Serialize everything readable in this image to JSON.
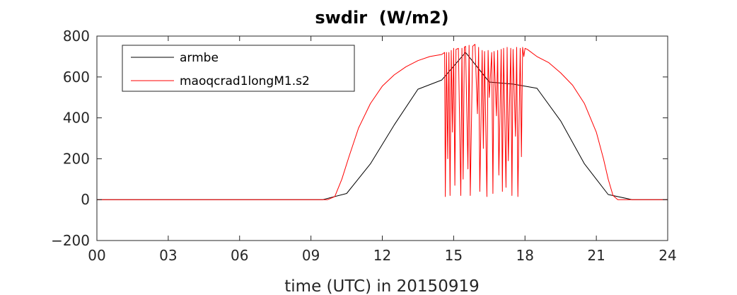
{
  "chart_data": {
    "type": "line",
    "title": "swdir  (W/m2)",
    "xlabel": "time (UTC) in 20150919",
    "ylabel": "",
    "xlim": [
      0,
      24
    ],
    "ylim": [
      -200,
      800
    ],
    "x_ticks": [
      0,
      3,
      6,
      9,
      12,
      15,
      18,
      21,
      24
    ],
    "x_tick_labels": [
      "00",
      "03",
      "06",
      "09",
      "12",
      "15",
      "18",
      "21",
      "24"
    ],
    "y_ticks": [
      -200,
      0,
      200,
      400,
      600,
      800
    ],
    "y_tick_labels": [
      "−200",
      "0",
      "200",
      "400",
      "600",
      "800"
    ],
    "grid": false,
    "legend_position": "top-left",
    "series": [
      {
        "name": "armbe",
        "color": "#000000",
        "x": [
          0,
          1,
          2,
          3,
          4,
          5,
          6,
          7,
          8,
          9,
          9.5,
          10.5,
          11.5,
          12.5,
          13.5,
          14.5,
          15.5,
          16.5,
          17.5,
          18.5,
          19.5,
          20.5,
          21.5,
          22.5,
          23.5,
          24
        ],
        "y": [
          0,
          0,
          0,
          0,
          0,
          0,
          0,
          0,
          0,
          0,
          0,
          30,
          175,
          365,
          540,
          585,
          720,
          575,
          565,
          545,
          385,
          175,
          25,
          0,
          0,
          0
        ]
      },
      {
        "name": "maoqcrad1longM1.s2",
        "color": "#ff0000",
        "x": [
          0,
          9.7,
          10.0,
          10.3,
          10.6,
          11.0,
          11.5,
          12.0,
          12.5,
          13.0,
          13.5,
          14.0,
          14.5,
          14.62,
          14.65,
          14.7,
          14.75,
          14.8,
          14.85,
          14.9,
          14.95,
          15.0,
          15.05,
          15.1,
          15.2,
          15.3,
          15.35,
          15.4,
          15.45,
          15.5,
          15.6,
          15.65,
          15.7,
          15.8,
          15.9,
          16.0,
          16.05,
          16.1,
          16.2,
          16.25,
          16.3,
          16.4,
          16.45,
          16.5,
          16.6,
          16.65,
          16.7,
          16.8,
          16.85,
          16.9,
          17.0,
          17.05,
          17.1,
          17.2,
          17.25,
          17.3,
          17.4,
          17.45,
          17.5,
          17.6,
          17.65,
          17.7,
          17.8,
          17.85,
          17.9,
          17.95,
          18.0,
          18.1,
          18.5,
          19.0,
          19.5,
          20.0,
          20.5,
          21.0,
          21.3,
          21.5,
          21.7,
          21.9,
          22.0,
          22.5,
          23.0,
          24
        ],
        "y": [
          0,
          0,
          15,
          100,
          210,
          350,
          470,
          555,
          610,
          650,
          680,
          700,
          710,
          720,
          15,
          720,
          200,
          720,
          20,
          730,
          330,
          740,
          70,
          735,
          740,
          20,
          740,
          100,
          745,
          750,
          150,
          755,
          20,
          750,
          760,
          420,
          745,
          40,
          730,
          250,
          725,
          15,
          730,
          500,
          720,
          30,
          725,
          410,
          730,
          120,
          735,
          40,
          740,
          60,
          745,
          190,
          740,
          20,
          735,
          310,
          745,
          15,
          740,
          210,
          745,
          700,
          740,
          735,
          700,
          670,
          620,
          560,
          470,
          330,
          200,
          100,
          20,
          0,
          0,
          0,
          0,
          0
        ]
      }
    ]
  }
}
